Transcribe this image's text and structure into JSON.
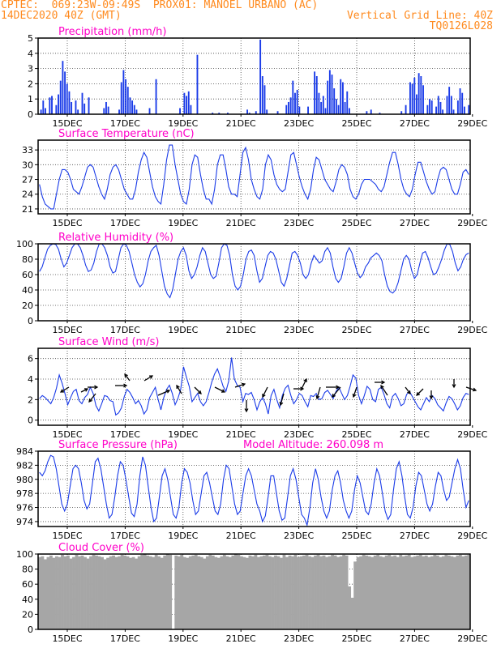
{
  "header": {
    "line1_left": "CPTEC:  069:23W-09:49S  PROX01: MANOEL URBANO (AC)",
    "line2_left": "14DEC2020 40Z (GMT)",
    "line2_right": "Vertical Grid Line: 40Z",
    "line3_right": "TQ0126L028"
  },
  "colors": {
    "header": "#ff8a1e",
    "title": "#ff00c8",
    "series": "#1a3be8",
    "cloud": "#a6a6a6"
  },
  "x_ticks": [
    "15DEC",
    "17DEC",
    "19DEC",
    "21DEC",
    "23DEC",
    "25DEC",
    "27DEC",
    "29DEC"
  ],
  "chart_data": [
    {
      "type": "bar",
      "title": "Precipitation (mm/h)",
      "ylim": [
        0,
        5
      ],
      "yticks": [
        0,
        1,
        2,
        3,
        4,
        5
      ],
      "grid": true,
      "x_start": "14DEC2020",
      "step_hours": 3,
      "values": [
        0,
        0.3,
        0.9,
        0.4,
        0,
        1.1,
        1.2,
        0,
        0.6,
        1.3,
        2.2,
        3.5,
        2.8,
        2.0,
        1.5,
        0.8,
        0,
        0.9,
        0.3,
        0,
        1.4,
        0.7,
        0,
        1.1,
        0,
        0,
        0,
        0,
        0,
        0,
        0.4,
        0.8,
        0.5,
        0,
        0,
        0,
        0,
        0.3,
        2.1,
        2.9,
        2.3,
        1.8,
        1.1,
        0.9,
        0.6,
        0.3,
        0,
        0,
        0,
        0,
        0,
        0.4,
        0,
        0,
        2.3,
        0,
        0,
        0,
        0,
        0,
        0,
        0,
        0,
        0,
        0,
        0.4,
        0,
        1.4,
        1.2,
        1.5,
        0.6,
        0,
        0,
        3.9,
        0,
        0,
        0,
        0,
        0,
        0,
        0.1,
        0,
        0,
        0.1,
        0,
        0,
        0,
        0.1,
        0,
        0,
        0,
        0,
        0,
        0,
        0,
        0,
        0.3,
        0.1,
        0,
        0,
        0.2,
        0,
        4.9,
        2.5,
        1.9,
        0.3,
        0,
        0,
        0,
        0,
        0.2,
        0,
        0,
        0,
        0.6,
        0.8,
        1.1,
        2.2,
        1.4,
        1.6,
        0.5,
        0,
        0,
        0,
        0.5,
        0,
        0,
        2.8,
        2.5,
        1.4,
        0.8,
        1.2,
        0.4,
        2.2,
        2.9,
        2.6,
        1.7,
        1.0,
        0.6,
        2.3,
        2.1,
        0.8,
        1.5,
        0.4,
        0,
        0,
        0,
        0,
        0,
        0,
        0,
        0.2,
        0,
        0.3,
        0,
        0,
        0,
        0.1,
        0,
        0,
        0,
        0,
        0,
        0,
        0,
        0,
        0,
        0.2,
        0,
        0.6,
        0,
        2.1,
        2.0,
        2.4,
        1.3,
        2.7,
        2.5,
        1.9,
        0,
        0.6,
        1.0,
        0.9,
        0,
        0.5,
        1.2,
        0.8,
        0.3,
        0,
        1.2,
        1.8,
        1.2,
        0.3,
        0,
        0.9,
        1.7,
        1.4,
        0.5,
        0,
        0.6
      ],
      "xlabel": "",
      "ylabel": ""
    },
    {
      "type": "line",
      "title": "Surface Temperature (nC)",
      "ylim": [
        20,
        35
      ],
      "yticks": [
        21,
        24,
        27,
        30,
        33
      ],
      "grid": true,
      "x_start": "14DEC2020",
      "step_hours": 3,
      "values": [
        26.0,
        23.5,
        22.0,
        21.5,
        21.0,
        21.0,
        24.0,
        27.0,
        29.0,
        29.0,
        28.5,
        27.0,
        25.0,
        24.5,
        24.0,
        25.5,
        27.5,
        29.5,
        30.0,
        29.5,
        27.5,
        25.5,
        24.0,
        23.0,
        25.0,
        28.0,
        29.5,
        30.0,
        29.0,
        27.0,
        25.0,
        24.0,
        23.0,
        23.0,
        25.0,
        28.5,
        31.0,
        32.5,
        31.5,
        28.5,
        25.5,
        23.5,
        22.5,
        22.0,
        26.0,
        31.0,
        34.0,
        34.0,
        30.0,
        27.0,
        24.0,
        22.5,
        22.0,
        25.0,
        30.0,
        32.0,
        31.5,
        28.0,
        25.0,
        23.0,
        23.0,
        22.0,
        25.0,
        30.0,
        32.0,
        32.0,
        29.0,
        25.5,
        24.0,
        24.0,
        23.5,
        28.0,
        32.5,
        33.5,
        31.0,
        27.0,
        25.0,
        23.5,
        23.0,
        25.0,
        30.0,
        32.0,
        31.0,
        28.0,
        26.0,
        25.0,
        24.5,
        25.0,
        28.5,
        32.0,
        32.5,
        30.0,
        27.5,
        25.5,
        24.0,
        23.0,
        25.0,
        29.0,
        31.5,
        31.0,
        29.0,
        27.0,
        26.0,
        25.0,
        24.5,
        26.5,
        29.0,
        30.0,
        29.5,
        28.0,
        25.0,
        23.5,
        23.0,
        24.0,
        26.0,
        27.0,
        27.0,
        27.0,
        26.5,
        26.0,
        25.0,
        24.5,
        25.5,
        28.0,
        30.5,
        32.5,
        32.5,
        30.0,
        27.0,
        25.0,
        24.0,
        23.5,
        25.0,
        28.0,
        30.5,
        30.5,
        28.5,
        26.5,
        25.0,
        24.0,
        24.5,
        27.0,
        29.0,
        29.5,
        29.0,
        27.0,
        25.0,
        24.0,
        24.0,
        26.0,
        28.5,
        29.0,
        28.0
      ]
    },
    {
      "type": "line",
      "title": "Relative Humidity (%)",
      "ylim": [
        0,
        100
      ],
      "yticks": [
        0,
        20,
        40,
        60,
        80,
        100
      ],
      "grid": true,
      "x_start": "14DEC2020",
      "step_hours": 3,
      "values": [
        64,
        70,
        82,
        93,
        98,
        100,
        99,
        93,
        80,
        70,
        75,
        85,
        95,
        100,
        100,
        95,
        85,
        72,
        64,
        66,
        75,
        90,
        100,
        100,
        95,
        85,
        70,
        62,
        64,
        80,
        95,
        100,
        98,
        90,
        75,
        60,
        50,
        44,
        48,
        60,
        78,
        90,
        95,
        98,
        85,
        65,
        45,
        35,
        30,
        40,
        60,
        80,
        90,
        95,
        85,
        65,
        55,
        60,
        70,
        85,
        95,
        90,
        75,
        60,
        55,
        58,
        75,
        95,
        100,
        98,
        85,
        60,
        45,
        40,
        45,
        60,
        80,
        90,
        92,
        85,
        65,
        50,
        55,
        70,
        85,
        90,
        88,
        80,
        65,
        50,
        45,
        55,
        72,
        88,
        90,
        85,
        75,
        60,
        55,
        60,
        75,
        85,
        80,
        75,
        78,
        90,
        95,
        88,
        70,
        55,
        50,
        55,
        70,
        88,
        95,
        88,
        75,
        62,
        56,
        60,
        70,
        75,
        82,
        85,
        88,
        85,
        78,
        60,
        45,
        38,
        36,
        40,
        50,
        65,
        80,
        85,
        80,
        65,
        55,
        60,
        75,
        88,
        90,
        82,
        70,
        60,
        62,
        70,
        80,
        92,
        100,
        99,
        90,
        75,
        65,
        70,
        80,
        86,
        88
      ]
    },
    {
      "type": "line",
      "title": "Surface Wind (m/s)",
      "ylim": [
        -0.5,
        7
      ],
      "yticks": [
        0,
        2,
        4,
        6
      ],
      "grid": true,
      "x_start": "14DEC2020",
      "step_hours": 3,
      "values": [
        2.1,
        2.4,
        2.2,
        1.9,
        1.6,
        2.2,
        3.1,
        4.4,
        3.6,
        2.6,
        1.5,
        2.2,
        2.8,
        3.0,
        1.9,
        1.6,
        2.2,
        2.5,
        3.2,
        2.6,
        1.4,
        0.9,
        1.6,
        2.4,
        2.3,
        1.9,
        1.8,
        0.5,
        0.7,
        1.2,
        2.3,
        3.0,
        2.7,
        2.2,
        1.6,
        1.9,
        1.4,
        0.6,
        1.0,
        2.2,
        2.7,
        3.2,
        2.0,
        1.0,
        2.2,
        3.0,
        3.4,
        2.6,
        1.5,
        2.1,
        3.0,
        5.2,
        4.2,
        3.3,
        1.8,
        2.2,
        2.6,
        1.8,
        1.4,
        1.8,
        2.7,
        3.7,
        4.5,
        5.0,
        4.2,
        3.3,
        2.8,
        3.8,
        6.1,
        4.0,
        3.4,
        3.2,
        1.8,
        2.6,
        2.5,
        2.7,
        2.0,
        1.0,
        1.8,
        2.2,
        1.6,
        0.6,
        2.4,
        3.0,
        2.0,
        1.2,
        2.4,
        3.1,
        3.4,
        2.4,
        1.6,
        2.0,
        2.6,
        2.4,
        1.8,
        1.3,
        2.4,
        2.3,
        2.6,
        2.0,
        2.1,
        2.7,
        2.9,
        2.5,
        2.1,
        2.8,
        3.2,
        2.6,
        2.0,
        2.4,
        3.3,
        4.4,
        4.1,
        2.4,
        1.6,
        2.4,
        3.3,
        3.0,
        2.0,
        1.8,
        3.0,
        3.2,
        2.5,
        1.6,
        1.2,
        2.3,
        2.6,
        2.1,
        1.4,
        1.6,
        2.5,
        2.8,
        2.3,
        1.8,
        1.3,
        1.0,
        1.6,
        2.2,
        1.8,
        2.4,
        2.1,
        1.5,
        1.2,
        0.9,
        1.7,
        2.3,
        2.1,
        1.6,
        1.0,
        1.4,
        2.2,
        2.6,
        2.5
      ]
    },
    {
      "type": "line",
      "title": "Surface Pressure (hPa)",
      "annotation": "Model Altitude: 260.098 m",
      "ylim": [
        973.3,
        984
      ],
      "yticks": [
        974,
        976,
        978,
        980,
        982,
        984
      ],
      "grid": true,
      "x_start": "14DEC2020",
      "step_hours": 3,
      "values": [
        981.0,
        980.5,
        981.2,
        982.5,
        983.4,
        983.2,
        981.5,
        979.0,
        976.5,
        975.5,
        976.5,
        979.0,
        981.5,
        982.0,
        981.5,
        979.5,
        977.0,
        975.8,
        976.5,
        979.5,
        982.5,
        983.0,
        981.5,
        979.0,
        976.5,
        974.5,
        975.0,
        977.5,
        980.5,
        982.5,
        982.0,
        980.0,
        977.5,
        975.2,
        974.7,
        976.5,
        980.5,
        983.2,
        982.0,
        979.0,
        976.0,
        974.0,
        974.5,
        977.5,
        980.5,
        981.5,
        980.0,
        977.5,
        975.0,
        974.5,
        976.0,
        979.5,
        981.5,
        981.0,
        979.5,
        977.0,
        975.0,
        975.5,
        978.0,
        980.5,
        981.0,
        979.5,
        977.5,
        975.5,
        975.0,
        976.5,
        980.0,
        982.0,
        981.5,
        979.0,
        976.5,
        975.0,
        975.5,
        978.0,
        980.5,
        981.5,
        980.5,
        978.5,
        976.5,
        975.5,
        974.0,
        974.8,
        977.5,
        980.5,
        980.5,
        978.0,
        975.5,
        974.2,
        974.5,
        977.5,
        980.5,
        981.5,
        980.0,
        977.5,
        975.0,
        974.5,
        973.5,
        976.0,
        979.5,
        981.5,
        980.0,
        977.5,
        975.5,
        974.5,
        975.5,
        978.5,
        980.5,
        981.2,
        979.5,
        977.0,
        975.5,
        974.5,
        975.5,
        978.5,
        980.5,
        979.5,
        977.5,
        975.5,
        975.0,
        976.5,
        979.5,
        981.5,
        980.5,
        978.0,
        975.5,
        974.3,
        975.0,
        978.5,
        981.5,
        982.5,
        980.5,
        977.5,
        975.0,
        974.5,
        976.0,
        979.0,
        981.0,
        980.5,
        978.5,
        976.5,
        975.5,
        976.5,
        979.0,
        981.0,
        980.5,
        978.5,
        977.0,
        977.5,
        979.5,
        981.5,
        982.8,
        981.5,
        978.5,
        976.0,
        977.0
      ]
    },
    {
      "type": "bar",
      "title": "Cloud Cover (%)",
      "ylim": [
        0,
        100
      ],
      "yticks": [
        0,
        20,
        40,
        60,
        80,
        100
      ],
      "grid": true,
      "x_start": "14DEC2020",
      "step_hours": 3,
      "values": [
        96,
        97,
        93,
        96,
        98,
        95,
        97,
        96,
        99,
        97,
        98,
        94,
        96,
        99,
        97,
        98,
        96,
        94,
        97,
        99,
        98,
        97,
        96,
        93,
        95,
        97,
        98,
        96,
        97,
        99,
        98,
        97,
        95,
        96,
        94,
        97,
        99,
        100,
        98,
        97,
        96,
        99,
        97,
        95,
        98,
        100,
        99,
        0,
        98,
        97,
        99,
        96,
        95,
        97,
        98,
        99,
        97,
        96,
        94,
        97,
        99,
        98,
        96,
        95,
        97,
        99,
        97,
        96,
        98,
        100,
        99,
        97,
        96,
        95,
        98,
        97,
        99,
        96,
        97,
        98,
        99,
        97,
        96,
        98,
        97,
        95,
        99,
        96,
        98,
        97,
        99,
        96,
        97,
        98,
        99,
        97,
        96,
        98,
        99,
        97,
        98,
        96,
        97,
        99,
        98,
        96,
        97,
        99,
        98,
        57,
        42,
        90,
        96,
        97,
        99,
        98,
        97,
        96,
        98,
        99,
        97,
        96,
        98,
        99,
        97,
        98,
        96,
        99,
        97,
        98,
        99,
        96,
        97,
        98,
        99,
        97,
        98,
        96,
        97,
        99,
        98,
        96,
        97,
        99,
        98,
        97,
        96,
        98,
        99,
        97,
        98,
        99
      ]
    }
  ]
}
